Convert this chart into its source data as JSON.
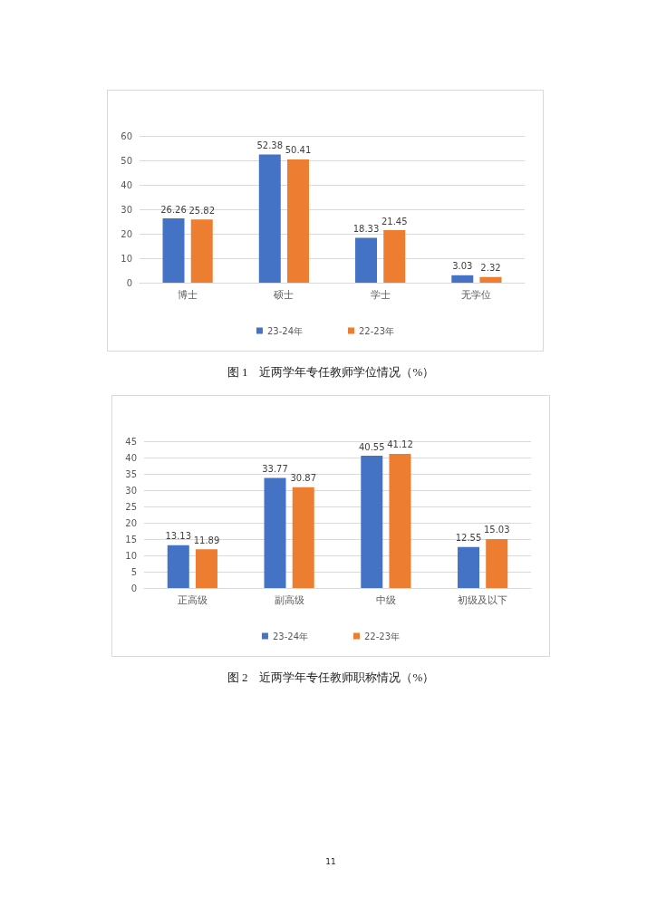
{
  "chart_data": [
    {
      "type": "bar",
      "title": "图 1　近两学年专任教师学位情况（%）",
      "categories": [
        "博士",
        "硕士",
        "学士",
        "无学位"
      ],
      "series": [
        {
          "name": "23-24年",
          "color": "#4472c4",
          "values": [
            26.26,
            52.38,
            18.33,
            3.03
          ]
        },
        {
          "name": "22-23年",
          "color": "#ed7d31",
          "values": [
            25.82,
            50.41,
            21.45,
            2.32
          ]
        }
      ],
      "ylim": [
        0,
        60
      ],
      "yticks": [
        0,
        10,
        20,
        30,
        40,
        50,
        60
      ],
      "grid": "y",
      "legend": "bottom",
      "data_labels": true
    },
    {
      "type": "bar",
      "title": "图 2　近两学年专任教师职称情况（%）",
      "categories": [
        "正高级",
        "副高级",
        "中级",
        "初级及以下"
      ],
      "series": [
        {
          "name": "23-24年",
          "color": "#4472c4",
          "values": [
            13.13,
            33.77,
            40.55,
            12.55
          ]
        },
        {
          "name": "22-23年",
          "color": "#ed7d31",
          "values": [
            11.89,
            30.87,
            41.12,
            15.03
          ]
        }
      ],
      "ylim": [
        0,
        45
      ],
      "yticks": [
        0,
        5,
        10,
        15,
        20,
        25,
        30,
        35,
        40,
        45
      ],
      "grid": "y",
      "legend": "bottom",
      "data_labels": true,
      "annotations": [
        "11"
      ]
    }
  ]
}
